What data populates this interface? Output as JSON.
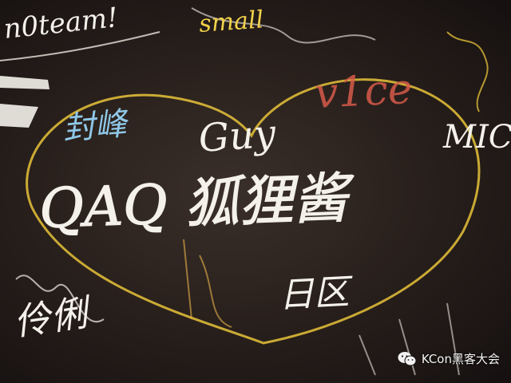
{
  "image": {
    "kind": "photo",
    "subject": "chalkboard wall of handwritten signatures",
    "colors": {
      "board": "#2a211d",
      "chalk_white": "#f4f1ea",
      "heart_yellow": "#e8c33a",
      "chalk_blue": "#8fc8e8",
      "chalk_red": "#d65a4a",
      "chalk_orange": "#e8b24a"
    }
  },
  "signatures": {
    "main": "QAQ 狐狸酱",
    "team": "n0team!",
    "small": "small",
    "guy": "Guy",
    "vice": "v1ce",
    "mic": "MIC",
    "hanzi_top": "封峰",
    "hanzi_bottom_left": "伶俐",
    "hanzi_bottom_mid": "日区"
  },
  "watermark": {
    "icon": "wechat-icon",
    "label": "KCon黑客大会"
  }
}
